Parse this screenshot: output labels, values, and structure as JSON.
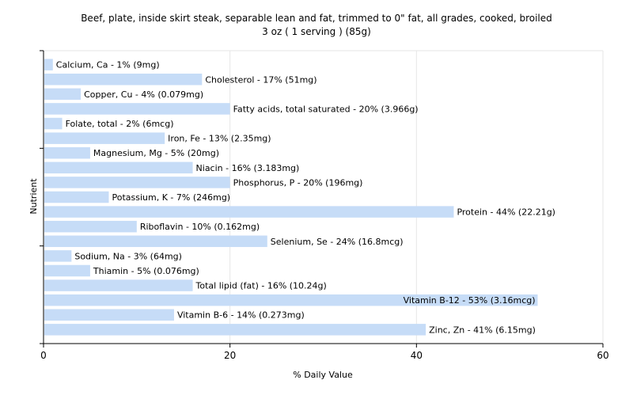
{
  "chart_data": {
    "type": "bar",
    "orientation": "horizontal",
    "title": "Beef, plate, inside skirt steak, separable lean and fat, trimmed to 0\" fat, all grades, cooked, broiled",
    "subtitle": "3 oz ( 1 serving ) (85g)",
    "xlabel": "% Daily Value",
    "ylabel": "Nutrient",
    "xlim": [
      0,
      60
    ],
    "xticks": [
      0,
      20,
      40,
      60
    ],
    "grid": true,
    "bar_color": "#c6dcf7",
    "categories": [
      "Calcium, Ca",
      "Cholesterol",
      "Copper, Cu",
      "Fatty acids, total saturated",
      "Folate, total",
      "Iron, Fe",
      "Magnesium, Mg",
      "Niacin",
      "Phosphorus, P",
      "Potassium, K",
      "Protein",
      "Riboflavin",
      "Selenium, Se",
      "Sodium, Na",
      "Thiamin",
      "Total lipid (fat)",
      "Vitamin B-12",
      "Vitamin B-6",
      "Zinc, Zn"
    ],
    "values": [
      1,
      17,
      4,
      20,
      2,
      13,
      5,
      16,
      20,
      7,
      44,
      10,
      24,
      3,
      5,
      16,
      53,
      14,
      41
    ],
    "labels": [
      "Calcium, Ca - 1% (9mg)",
      "Cholesterol - 17% (51mg)",
      "Copper, Cu - 4% (0.079mg)",
      "Fatty acids, total saturated - 20% (3.966g)",
      "Folate, total - 2% (6mcg)",
      "Iron, Fe - 13% (2.35mg)",
      "Magnesium, Mg - 5% (20mg)",
      "Niacin - 16% (3.183mg)",
      "Phosphorus, P - 20% (196mg)",
      "Potassium, K - 7% (246mg)",
      "Protein - 44% (22.21g)",
      "Riboflavin - 10% (0.162mg)",
      "Selenium, Se - 24% (16.8mcg)",
      "Sodium, Na - 3% (64mg)",
      "Thiamin - 5% (0.076mg)",
      "Total lipid (fat) - 16% (10.24g)",
      "Vitamin B-12 - 53% (3.16mcg)",
      "Vitamin B-6 - 14% (0.273mg)",
      "Zinc, Zn - 41% (6.15mg)"
    ]
  }
}
